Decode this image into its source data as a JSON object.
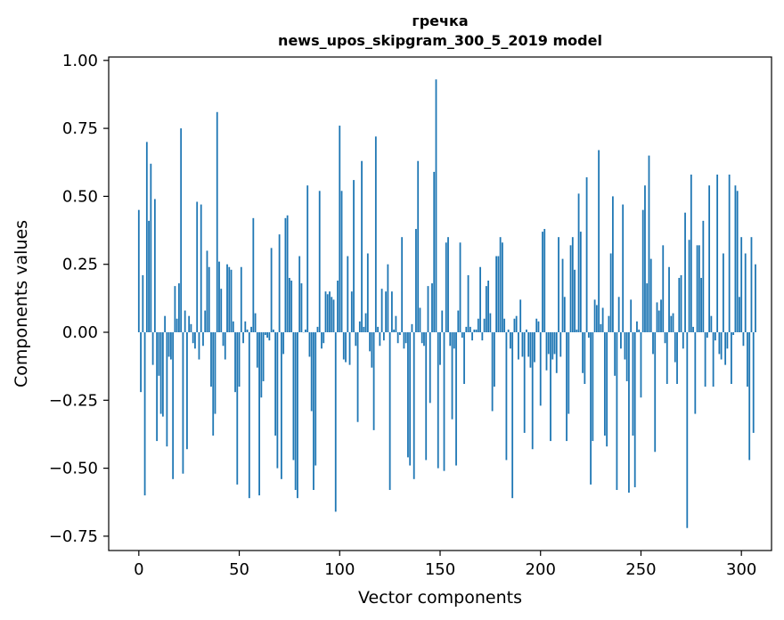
{
  "chart_data": {
    "type": "bar",
    "title": "гречка",
    "subtitle": "news_upos_skipgram_300_5_2019 model",
    "xlabel": "Vector components",
    "ylabel": "Components values",
    "xlim": [
      -15,
      315
    ],
    "ylim": [
      -0.8,
      1.01
    ],
    "xticks": [
      0,
      50,
      100,
      150,
      200,
      250,
      300
    ],
    "yticks": [
      1.0,
      0.75,
      0.5,
      0.25,
      0.0,
      -0.25,
      -0.5,
      -0.75
    ],
    "xtick_labels": [
      "0",
      "50",
      "100",
      "150",
      "200",
      "250",
      "300"
    ],
    "ytick_labels": [
      "1.00",
      "0.75",
      "0.50",
      "0.25",
      "0.00",
      "−0.25",
      "−0.50",
      "−0.75"
    ],
    "grid": false,
    "bar_color": "#1f77b4",
    "series": [
      {
        "values": [
          0.45,
          -0.22,
          0.21,
          -0.6,
          0.7,
          0.41,
          0.62,
          -0.12,
          0.49,
          -0.4,
          -0.16,
          -0.3,
          -0.31,
          0.06,
          -0.42,
          -0.09,
          -0.1,
          -0.54,
          0.17,
          0.05,
          0.18,
          0.75,
          -0.52,
          0.08,
          -0.43,
          0.06,
          0.03,
          -0.04,
          -0.06,
          0.48,
          -0.1,
          0.47,
          -0.05,
          0.08,
          0.3,
          0.24,
          -0.2,
          -0.38,
          -0.3,
          0.81,
          0.26,
          0.16,
          -0.05,
          -0.1,
          0.25,
          0.24,
          0.23,
          0.04,
          -0.22,
          -0.56,
          -0.2,
          0.24,
          -0.04,
          0.04,
          0.01,
          -0.61,
          0.02,
          0.42,
          0.07,
          -0.13,
          -0.6,
          -0.24,
          -0.18,
          -0.01,
          -0.02,
          -0.03,
          0.31,
          0.01,
          -0.38,
          -0.5,
          0.36,
          -0.54,
          -0.08,
          0.42,
          0.43,
          0.2,
          0.19,
          -0.47,
          -0.58,
          -0.61,
          0.28,
          0.18,
          0.0,
          0.01,
          0.54,
          -0.09,
          -0.29,
          -0.58,
          -0.49,
          0.02,
          0.52,
          -0.06,
          -0.04,
          0.15,
          0.14,
          0.15,
          0.13,
          0.12,
          -0.66,
          0.19,
          0.76,
          0.52,
          -0.1,
          -0.11,
          0.28,
          -0.12,
          0.15,
          0.56,
          -0.05,
          -0.33,
          0.04,
          0.63,
          0.02,
          0.07,
          0.29,
          -0.07,
          -0.13,
          -0.36,
          0.72,
          0.02,
          -0.05,
          0.16,
          -0.03,
          0.15,
          0.25,
          -0.58,
          0.15,
          0.01,
          0.06,
          -0.04,
          -0.01,
          0.35,
          -0.06,
          -0.04,
          -0.46,
          -0.49,
          0.03,
          -0.54,
          0.38,
          0.63,
          0.09,
          -0.04,
          -0.05,
          -0.47,
          0.17,
          -0.26,
          0.18,
          0.59,
          0.93,
          -0.5,
          -0.12,
          0.08,
          -0.51,
          0.33,
          0.35,
          -0.05,
          -0.32,
          -0.06,
          -0.49,
          0.08,
          0.33,
          -0.02,
          -0.19,
          0.02,
          0.21,
          0.02,
          -0.03,
          0.01,
          0.01,
          0.05,
          0.24,
          -0.03,
          0.05,
          0.17,
          0.19,
          0.07,
          -0.29,
          -0.2,
          0.28,
          0.28,
          0.35,
          0.33,
          0.05,
          -0.47,
          0.01,
          -0.06,
          -0.61,
          0.05,
          0.06,
          -0.1,
          0.12,
          -0.09,
          -0.37,
          0.01,
          -0.09,
          -0.13,
          -0.43,
          -0.11,
          0.05,
          0.04,
          -0.27,
          0.37,
          0.38,
          -0.14,
          -0.08,
          -0.4,
          -0.1,
          -0.08,
          -0.15,
          0.35,
          -0.09,
          0.27,
          0.13,
          -0.4,
          -0.3,
          0.32,
          0.35,
          0.23,
          0.01,
          0.51,
          0.37,
          -0.15,
          -0.19,
          0.57,
          -0.02,
          -0.56,
          -0.4,
          0.12,
          0.1,
          0.67,
          0.03,
          0.09,
          -0.38,
          -0.42,
          0.06,
          0.29,
          0.5,
          -0.16,
          -0.58,
          0.13,
          -0.06,
          0.47,
          -0.1,
          -0.18,
          -0.59,
          0.12,
          -0.38,
          -0.57,
          0.04,
          0.01,
          -0.24,
          0.45,
          0.54,
          0.18,
          0.65,
          0.27,
          -0.08,
          -0.44,
          0.11,
          0.08,
          0.12,
          0.32,
          -0.04,
          -0.19,
          0.24,
          0.06,
          0.07,
          -0.11,
          -0.19,
          0.2,
          0.21,
          -0.06,
          0.44,
          -0.72,
          0.34,
          0.58,
          0.02,
          -0.3,
          0.32,
          0.32,
          0.2,
          0.41,
          -0.2,
          -0.02,
          0.54,
          0.06,
          -0.2,
          -0.03,
          0.58,
          -0.08,
          -0.1,
          0.29,
          -0.12,
          -0.06,
          0.58,
          -0.19,
          -0.01,
          0.54,
          0.52,
          0.13,
          0.35,
          -0.05,
          0.29,
          -0.2,
          -0.47,
          0.35,
          -0.37,
          0.25
        ]
      }
    ]
  }
}
